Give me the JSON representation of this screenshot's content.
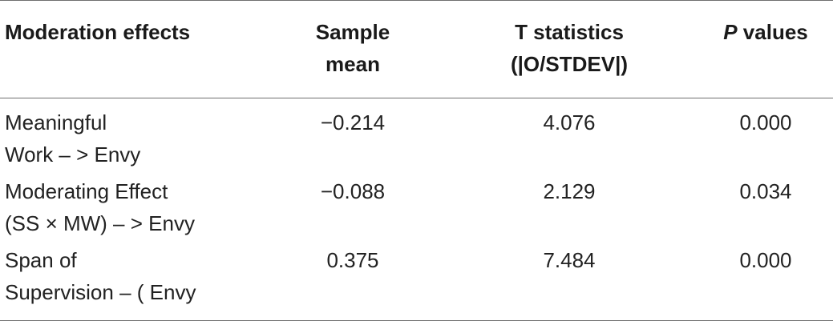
{
  "table": {
    "headers": {
      "col1": "Moderation effects",
      "col2_line1": "Sample",
      "col2_line2": "mean",
      "col3_line1": "T statistics",
      "col3_line2": "(|O/STDEV|)",
      "col4_italic": "P",
      "col4_rest": " values"
    },
    "rows": [
      {
        "effect_line1": "Meaningful",
        "effect_line2": "Work – > Envy",
        "sample_mean": "−0.214",
        "t_statistics": "4.076",
        "p_value": "0.000"
      },
      {
        "effect_line1": "Moderating Effect",
        "effect_line2": "(SS × MW) – > Envy",
        "sample_mean": "−0.088",
        "t_statistics": "2.129",
        "p_value": "0.034"
      },
      {
        "effect_line1": "Span of",
        "effect_line2": "Supervision – ( Envy",
        "sample_mean": "0.375",
        "t_statistics": "7.484",
        "p_value": "0.000"
      }
    ]
  }
}
